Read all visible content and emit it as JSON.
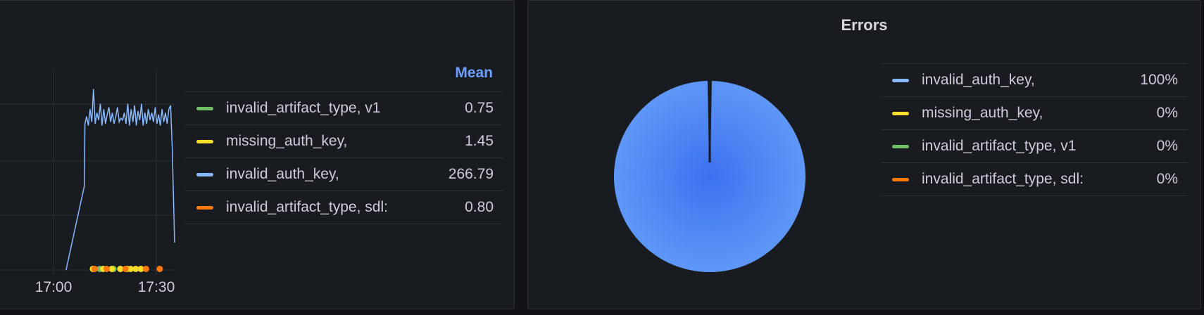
{
  "chart_data": [
    {
      "type": "line",
      "title": "",
      "xlabel": "",
      "ylabel": "",
      "x_ticks": [
        "17:00",
        "17:30"
      ],
      "grid": true,
      "legend_placement": "right",
      "legend_header": "Mean",
      "series": [
        {
          "name": "invalid_artifact_type, v1",
          "color": "#73bf69",
          "mean": "0.75",
          "points": [
            [
              "17:13:30",
              1
            ],
            [
              "17:17:30",
              1
            ],
            [
              "17:19:30",
              1
            ]
          ]
        },
        {
          "name": "missing_auth_key,",
          "color": "#fade2a",
          "mean": "1.45",
          "points": [
            [
              "17:11:30",
              1
            ],
            [
              "17:14:30",
              1
            ],
            [
              "17:17:00",
              1
            ],
            [
              "17:19:30",
              1
            ],
            [
              "17:21:30",
              1
            ],
            [
              "17:22:30",
              1
            ],
            [
              "17:24:00",
              1
            ],
            [
              "17:25:30",
              1
            ]
          ]
        },
        {
          "name": "invalid_auth_key,",
          "color": "#8ab8ff",
          "mean": "266.79",
          "points": [
            [
              "17:03:40",
              0
            ],
            [
              "17:09:00",
              230
            ],
            [
              "17:09:10",
              400
            ],
            [
              "17:09:40",
              420
            ],
            [
              "17:10:10",
              395
            ],
            [
              "17:10:40",
              440
            ],
            [
              "17:11:10",
              405
            ],
            [
              "17:11:40",
              495
            ],
            [
              "17:12:10",
              400
            ],
            [
              "17:12:40",
              430
            ],
            [
              "17:13:10",
              410
            ],
            [
              "17:13:40",
              455
            ],
            [
              "17:14:10",
              395
            ],
            [
              "17:14:40",
              440
            ],
            [
              "17:15:10",
              400
            ],
            [
              "17:15:40",
              425
            ],
            [
              "17:16:10",
              445
            ],
            [
              "17:16:40",
              405
            ],
            [
              "17:17:10",
              430
            ],
            [
              "17:17:40",
              400
            ],
            [
              "17:18:10",
              420
            ],
            [
              "17:18:40",
              445
            ],
            [
              "17:19:10",
              405
            ],
            [
              "17:19:40",
              415
            ],
            [
              "17:20:10",
              410
            ],
            [
              "17:20:40",
              430
            ],
            [
              "17:21:10",
              400
            ],
            [
              "17:21:40",
              455
            ],
            [
              "17:22:10",
              395
            ],
            [
              "17:22:40",
              440
            ],
            [
              "17:23:10",
              405
            ],
            [
              "17:23:40",
              450
            ],
            [
              "17:24:10",
              395
            ],
            [
              "17:24:40",
              435
            ],
            [
              "17:25:10",
              410
            ],
            [
              "17:25:40",
              455
            ],
            [
              "17:26:10",
              395
            ],
            [
              "17:26:40",
              430
            ],
            [
              "17:27:10",
              400
            ],
            [
              "17:27:40",
              440
            ],
            [
              "17:28:10",
              410
            ],
            [
              "17:28:40",
              430
            ],
            [
              "17:29:10",
              405
            ],
            [
              "17:29:40",
              445
            ],
            [
              "17:30:10",
              400
            ],
            [
              "17:30:40",
              425
            ],
            [
              "17:31:10",
              395
            ],
            [
              "17:31:40",
              440
            ],
            [
              "17:32:10",
              405
            ],
            [
              "17:32:40",
              430
            ],
            [
              "17:33:10",
              400
            ],
            [
              "17:33:40",
              440
            ],
            [
              "17:34:10",
              450
            ],
            [
              "17:34:40",
              330
            ],
            [
              "17:35:20",
              75
            ]
          ]
        },
        {
          "name": "invalid_artifact_type, sdl:",
          "color": "#ff780a",
          "mean": "0.80",
          "points": [
            [
              "17:12:00",
              1
            ],
            [
              "17:15:30",
              1
            ],
            [
              "17:21:00",
              1
            ],
            [
              "17:27:00",
              1
            ],
            [
              "17:31:00",
              1
            ]
          ]
        }
      ]
    },
    {
      "type": "pie",
      "title": "Errors",
      "legend_placement": "right",
      "slices": [
        {
          "name": "invalid_auth_key,",
          "color": "#8ab8ff",
          "fill": "#5794f2",
          "percent": 100,
          "label": "100%"
        },
        {
          "name": "missing_auth_key,",
          "color": "#fade2a",
          "percent": 0,
          "label": "0%"
        },
        {
          "name": "invalid_artifact_type, v1",
          "color": "#73bf69",
          "percent": 0,
          "label": "0%"
        },
        {
          "name": "invalid_artifact_type, sdl:",
          "color": "#ff780a",
          "percent": 0,
          "label": "0%"
        }
      ]
    }
  ]
}
